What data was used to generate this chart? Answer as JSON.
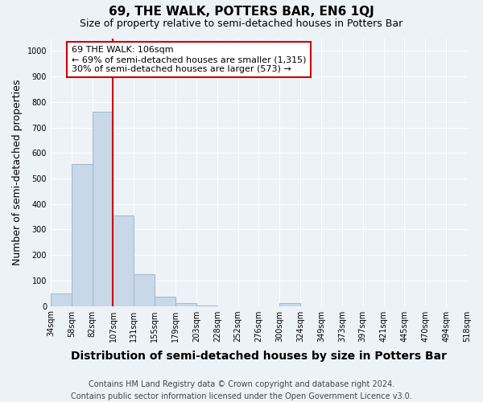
{
  "title": "69, THE WALK, POTTERS BAR, EN6 1QJ",
  "subtitle": "Size of property relative to semi-detached houses in Potters Bar",
  "xlabel": "Distribution of semi-detached houses by size in Potters Bar",
  "ylabel": "Number of semi-detached properties",
  "bar_values": [
    50,
    555,
    760,
    355,
    125,
    35,
    12,
    3,
    0,
    0,
    0,
    10,
    0,
    0,
    0,
    0,
    0,
    0,
    0,
    0
  ],
  "bar_labels": [
    "34sqm",
    "58sqm",
    "82sqm",
    "107sqm",
    "131sqm",
    "155sqm",
    "179sqm",
    "203sqm",
    "228sqm",
    "252sqm",
    "276sqm",
    "300sqm",
    "324sqm",
    "349sqm",
    "373sqm",
    "397sqm",
    "421sqm",
    "445sqm",
    "470sqm",
    "494sqm",
    "518sqm"
  ],
  "bar_color": "#c8d8e8",
  "bar_edge_color": "#a0b8d0",
  "ylim": [
    0,
    1050
  ],
  "yticks": [
    0,
    100,
    200,
    300,
    400,
    500,
    600,
    700,
    800,
    900,
    1000
  ],
  "annotation_text": "69 THE WALK: 106sqm\n← 69% of semi-detached houses are smaller (1,315)\n30% of semi-detached houses are larger (573) →",
  "annotation_box_color": "#ffffff",
  "annotation_border_color": "#cc0000",
  "red_line_x": 3,
  "footnote": "Contains HM Land Registry data © Crown copyright and database right 2024.\nContains public sector information licensed under the Open Government Licence v3.0.",
  "background_color": "#edf2f7",
  "grid_color": "#ffffff",
  "title_fontsize": 11,
  "subtitle_fontsize": 9,
  "axis_label_fontsize": 9,
  "tick_fontsize": 7,
  "annotation_fontsize": 8,
  "footnote_fontsize": 7
}
